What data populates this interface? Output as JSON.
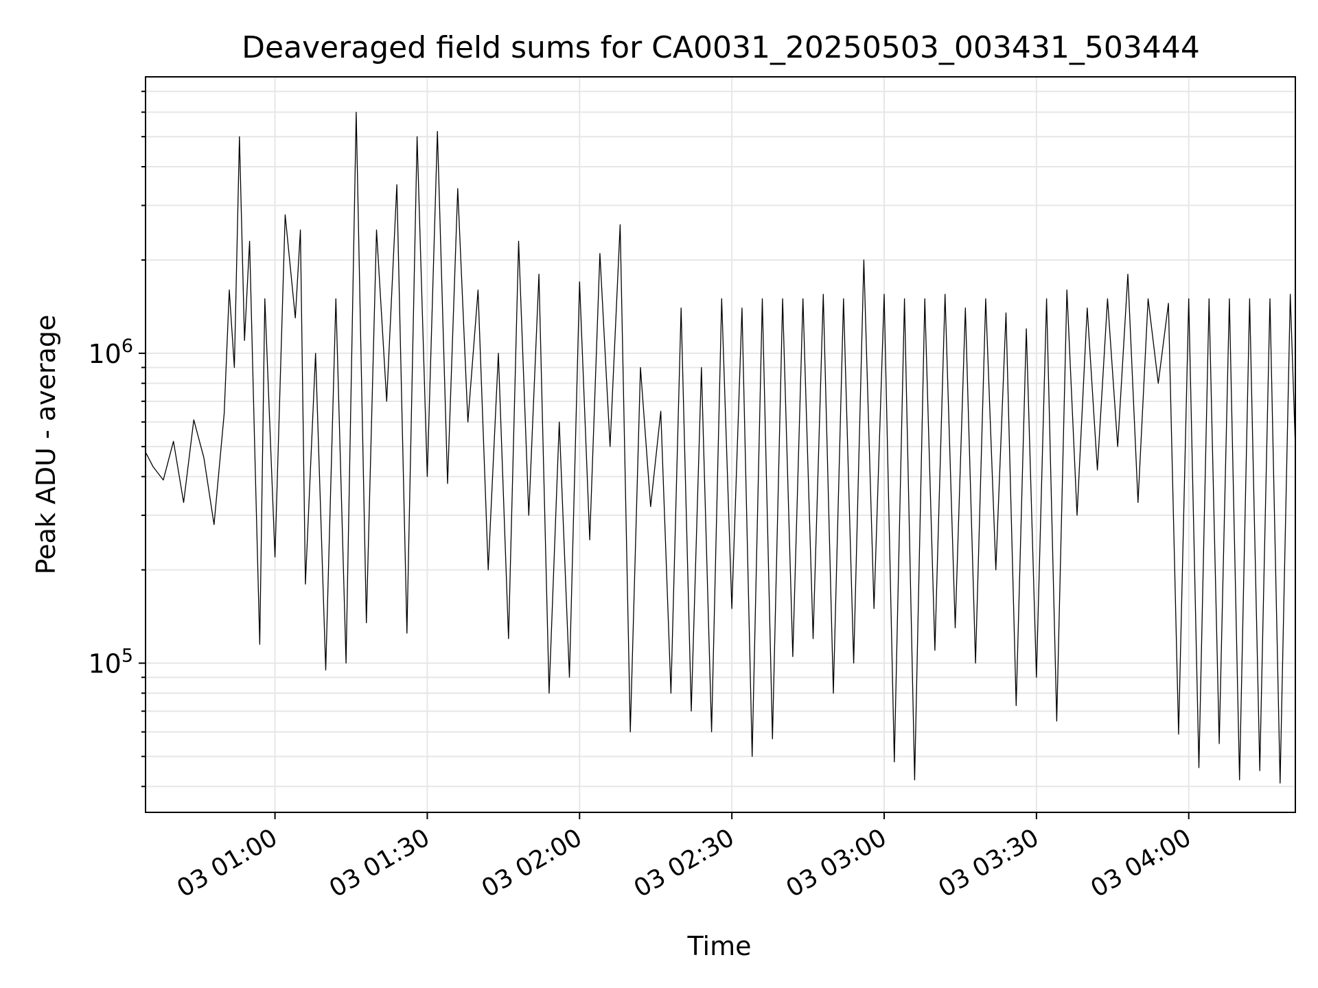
{
  "chart_data": {
    "type": "line",
    "title": "Deaveraged field sums for CA0031_20250503_003431_503444",
    "xlabel": "Time",
    "ylabel": "Peak ADU - average",
    "x_start": "2025-05-03 00:34:30",
    "x_end": "2025-05-03 04:21:00",
    "xlim": [
      "2025-05-03 00:34:30",
      "2025-05-03 04:21:00"
    ],
    "ylim": [
      33000,
      7800000
    ],
    "yscale": "log",
    "grid": true,
    "line_color": "#000000",
    "x_ticks": [
      "03 01:00",
      "03 01:30",
      "03 02:00",
      "03 02:30",
      "03 03:00",
      "03 03:30",
      "03 04:00"
    ],
    "y_ticks": [
      {
        "base": "10",
        "exp": "5",
        "value": 100000
      },
      {
        "base": "10",
        "exp": "6",
        "value": 1000000
      }
    ],
    "series": [
      {
        "values": [
          [
            "2025-05-03 00:34:30",
            480000
          ],
          [
            "2025-05-03 00:36:00",
            430000
          ],
          [
            "2025-05-03 00:38:00",
            390000
          ],
          [
            "2025-05-03 00:40:00",
            520000
          ],
          [
            "2025-05-03 00:42:00",
            330000
          ],
          [
            "2025-05-03 00:44:00",
            610000
          ],
          [
            "2025-05-03 00:46:00",
            460000
          ],
          [
            "2025-05-03 00:48:00",
            280000
          ],
          [
            "2025-05-03 00:50:00",
            640000
          ],
          [
            "2025-05-03 00:51:00",
            1600000
          ],
          [
            "2025-05-03 00:52:00",
            900000
          ],
          [
            "2025-05-03 00:53:00",
            5000000
          ],
          [
            "2025-05-03 00:54:00",
            1100000
          ],
          [
            "2025-05-03 00:55:00",
            2300000
          ],
          [
            "2025-05-03 00:56:00",
            500000
          ],
          [
            "2025-05-03 00:57:00",
            115000
          ],
          [
            "2025-05-03 00:58:00",
            1500000
          ],
          [
            "2025-05-03 01:00:00",
            220000
          ],
          [
            "2025-05-03 01:02:00",
            2800000
          ],
          [
            "2025-05-03 01:04:00",
            1300000
          ],
          [
            "2025-05-03 01:05:00",
            2500000
          ],
          [
            "2025-05-03 01:06:00",
            180000
          ],
          [
            "2025-05-03 01:08:00",
            1000000
          ],
          [
            "2025-05-03 01:10:00",
            95000
          ],
          [
            "2025-05-03 01:12:00",
            1500000
          ],
          [
            "2025-05-03 01:14:00",
            100000
          ],
          [
            "2025-05-03 01:16:00",
            6000000
          ],
          [
            "2025-05-03 01:18:00",
            135000
          ],
          [
            "2025-05-03 01:20:00",
            2500000
          ],
          [
            "2025-05-03 01:22:00",
            700000
          ],
          [
            "2025-05-03 01:24:00",
            3500000
          ],
          [
            "2025-05-03 01:26:00",
            125000
          ],
          [
            "2025-05-03 01:28:00",
            5000000
          ],
          [
            "2025-05-03 01:30:00",
            400000
          ],
          [
            "2025-05-03 01:32:00",
            5200000
          ],
          [
            "2025-05-03 01:34:00",
            380000
          ],
          [
            "2025-05-03 01:36:00",
            3400000
          ],
          [
            "2025-05-03 01:38:00",
            600000
          ],
          [
            "2025-05-03 01:40:00",
            1600000
          ],
          [
            "2025-05-03 01:42:00",
            200000
          ],
          [
            "2025-05-03 01:44:00",
            1000000
          ],
          [
            "2025-05-03 01:46:00",
            120000
          ],
          [
            "2025-05-03 01:48:00",
            2300000
          ],
          [
            "2025-05-03 01:50:00",
            300000
          ],
          [
            "2025-05-03 01:52:00",
            1800000
          ],
          [
            "2025-05-03 01:54:00",
            80000
          ],
          [
            "2025-05-03 01:56:00",
            600000
          ],
          [
            "2025-05-03 01:58:00",
            90000
          ],
          [
            "2025-05-03 02:00:00",
            1700000
          ],
          [
            "2025-05-03 02:02:00",
            250000
          ],
          [
            "2025-05-03 02:04:00",
            2100000
          ],
          [
            "2025-05-03 02:06:00",
            500000
          ],
          [
            "2025-05-03 02:08:00",
            2600000
          ],
          [
            "2025-05-03 02:10:00",
            60000
          ],
          [
            "2025-05-03 02:12:00",
            900000
          ],
          [
            "2025-05-03 02:14:00",
            320000
          ],
          [
            "2025-05-03 02:16:00",
            650000
          ],
          [
            "2025-05-03 02:18:00",
            80000
          ],
          [
            "2025-05-03 02:20:00",
            1400000
          ],
          [
            "2025-05-03 02:22:00",
            70000
          ],
          [
            "2025-05-03 02:24:00",
            900000
          ],
          [
            "2025-05-03 02:26:00",
            60000
          ],
          [
            "2025-05-03 02:28:00",
            1500000
          ],
          [
            "2025-05-03 02:30:00",
            150000
          ],
          [
            "2025-05-03 02:32:00",
            1400000
          ],
          [
            "2025-05-03 02:34:00",
            50000
          ],
          [
            "2025-05-03 02:36:00",
            1500000
          ],
          [
            "2025-05-03 02:38:00",
            57000
          ],
          [
            "2025-05-03 02:40:00",
            1500000
          ],
          [
            "2025-05-03 02:42:00",
            105000
          ],
          [
            "2025-05-03 02:44:00",
            1500000
          ],
          [
            "2025-05-03 02:46:00",
            120000
          ],
          [
            "2025-05-03 02:48:00",
            1550000
          ],
          [
            "2025-05-03 02:50:00",
            80000
          ],
          [
            "2025-05-03 02:52:00",
            1500000
          ],
          [
            "2025-05-03 02:54:00",
            100000
          ],
          [
            "2025-05-03 02:56:00",
            2000000
          ],
          [
            "2025-05-03 02:58:00",
            150000
          ],
          [
            "2025-05-03 03:00:00",
            1550000
          ],
          [
            "2025-05-03 03:02:00",
            48000
          ],
          [
            "2025-05-03 03:04:00",
            1500000
          ],
          [
            "2025-05-03 03:06:00",
            42000
          ],
          [
            "2025-05-03 03:08:00",
            1500000
          ],
          [
            "2025-05-03 03:10:00",
            110000
          ],
          [
            "2025-05-03 03:12:00",
            1550000
          ],
          [
            "2025-05-03 03:14:00",
            130000
          ],
          [
            "2025-05-03 03:16:00",
            1400000
          ],
          [
            "2025-05-03 03:18:00",
            100000
          ],
          [
            "2025-05-03 03:20:00",
            1500000
          ],
          [
            "2025-05-03 03:22:00",
            200000
          ],
          [
            "2025-05-03 03:24:00",
            1350000
          ],
          [
            "2025-05-03 03:26:00",
            73000
          ],
          [
            "2025-05-03 03:28:00",
            1200000
          ],
          [
            "2025-05-03 03:30:00",
            90000
          ],
          [
            "2025-05-03 03:32:00",
            1500000
          ],
          [
            "2025-05-03 03:34:00",
            65000
          ],
          [
            "2025-05-03 03:36:00",
            1600000
          ],
          [
            "2025-05-03 03:38:00",
            300000
          ],
          [
            "2025-05-03 03:40:00",
            1400000
          ],
          [
            "2025-05-03 03:42:00",
            420000
          ],
          [
            "2025-05-03 03:44:00",
            1500000
          ],
          [
            "2025-05-03 03:46:00",
            500000
          ],
          [
            "2025-05-03 03:48:00",
            1800000
          ],
          [
            "2025-05-03 03:50:00",
            330000
          ],
          [
            "2025-05-03 03:52:00",
            1500000
          ],
          [
            "2025-05-03 03:54:00",
            800000
          ],
          [
            "2025-05-03 03:56:00",
            1450000
          ],
          [
            "2025-05-03 03:58:00",
            59000
          ],
          [
            "2025-05-03 04:00:00",
            1500000
          ],
          [
            "2025-05-03 04:02:00",
            46000
          ],
          [
            "2025-05-03 04:04:00",
            1500000
          ],
          [
            "2025-05-03 04:06:00",
            55000
          ],
          [
            "2025-05-03 04:08:00",
            1500000
          ],
          [
            "2025-05-03 04:10:00",
            42000
          ],
          [
            "2025-05-03 04:12:00",
            1500000
          ],
          [
            "2025-05-03 04:14:00",
            45000
          ],
          [
            "2025-05-03 04:16:00",
            1500000
          ],
          [
            "2025-05-03 04:18:00",
            41000
          ],
          [
            "2025-05-03 04:20:00",
            1550000
          ],
          [
            "2025-05-03 04:21:00",
            500000
          ]
        ]
      }
    ]
  }
}
